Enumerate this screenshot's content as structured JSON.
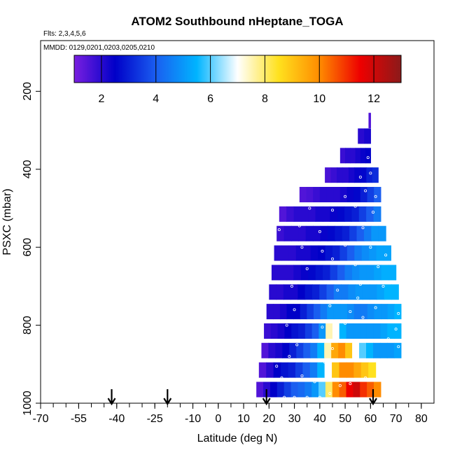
{
  "chart_data": {
    "type": "heatmap",
    "title": "ATOM2 Southbound nHeptane_TOGA",
    "flights_label": "Flts: 2,3,4,5,6",
    "dates_label": "MMDD: 0129,0201,0203,0205,0210",
    "xlabel": "Latitude (deg N)",
    "ylabel": "PSXC (mbar)",
    "x_ticks": [
      -70,
      -55,
      -40,
      -25,
      -10,
      0,
      10,
      20,
      30,
      40,
      50,
      60,
      70,
      80
    ],
    "x_tick_labels": [
      "-70",
      "-55",
      "-40",
      "-25",
      "-10",
      "0",
      "10",
      "20",
      "30",
      "40",
      "50",
      "60",
      "70",
      "80"
    ],
    "y_ticks": [
      200,
      400,
      600,
      800,
      1000
    ],
    "y_tick_labels": [
      "200",
      "400",
      "600",
      "800",
      "1000"
    ],
    "xlim": [
      -70,
      85
    ],
    "ylim": [
      1000,
      70
    ],
    "colorbar": {
      "range": [
        1,
        13
      ],
      "ticks": [
        2,
        4,
        6,
        8,
        10,
        12
      ],
      "tick_labels": [
        "2",
        "4",
        "6",
        "8",
        "10",
        "12"
      ],
      "colors": [
        "#7a1fe0",
        "#0000c8",
        "#1a5ef0",
        "#00b4ff",
        "#ffffff",
        "#ffe11e",
        "#ff8c00",
        "#ee0000",
        "#8b1a1a"
      ]
    },
    "arrows_latitude": [
      -42,
      -20,
      19,
      61
    ],
    "bands": [
      {
        "p": 965,
        "x0": 15,
        "x1": 64,
        "vals": [
          1.5,
          2,
          2.5,
          3,
          3.5,
          4,
          4.2,
          4.5,
          5,
          6,
          8,
          10,
          10.5,
          11.5,
          12,
          11,
          10.5,
          10
        ]
      },
      {
        "p": 915,
        "x0": 16,
        "x1": 62,
        "vals": [
          1.5,
          2,
          2.5,
          2.8,
          3,
          3.5,
          4,
          4.5,
          5.5,
          7,
          9,
          10,
          10,
          9.5,
          9,
          8.5
        ]
      },
      {
        "p": 865,
        "x0": 17,
        "x1": 72,
        "vals": [
          1.5,
          2,
          2.2,
          2.5,
          3,
          3.5,
          4,
          4.5,
          5.5,
          7.5,
          9.5,
          10,
          9,
          7,
          6,
          5.5,
          5,
          5,
          5,
          5.2
        ]
      },
      {
        "p": 815,
        "x0": 18,
        "x1": 72,
        "vals": [
          1.8,
          2,
          2.2,
          2.5,
          2.8,
          3,
          3.5,
          4,
          5,
          7.5,
          7,
          5.5,
          5,
          5,
          5,
          5,
          5,
          5.2,
          5.5,
          5.5
        ]
      },
      {
        "p": 765,
        "x0": 19,
        "x1": 72,
        "vals": [
          2,
          2,
          2.2,
          2.5,
          2.5,
          3,
          3.5,
          4,
          4.5,
          5,
          5,
          5,
          4.8,
          4.5,
          4.5,
          4.8,
          5,
          5,
          5.2,
          5.5
        ]
      },
      {
        "p": 715,
        "x0": 20,
        "x1": 71,
        "vals": [
          2,
          2,
          2.2,
          2.2,
          2.5,
          2.8,
          3,
          3.5,
          4,
          4.5,
          4.5,
          4.8,
          5,
          5,
          5,
          5.2,
          5.5,
          5.5
        ]
      },
      {
        "p": 665,
        "x0": 21,
        "x1": 70,
        "vals": [
          2,
          2,
          2,
          2.2,
          2.4,
          2.6,
          2.8,
          3,
          3.5,
          4,
          4.5,
          4.8,
          5,
          5,
          5.2,
          5.4,
          5.4
        ]
      },
      {
        "p": 615,
        "x0": 22,
        "x1": 68,
        "vals": [
          2,
          2,
          2,
          2.2,
          2.2,
          2.4,
          2.5,
          2.8,
          3,
          3.5,
          4,
          4.5,
          4.8,
          5,
          5.2,
          5.2
        ]
      },
      {
        "p": 565,
        "x0": 23,
        "x1": 66,
        "vals": [
          1.8,
          2,
          2,
          2,
          2.2,
          2.2,
          2.4,
          2.6,
          2.8,
          3,
          3.5,
          4,
          4.5,
          5,
          5
        ]
      },
      {
        "p": 515,
        "x0": 24,
        "x1": 64,
        "vals": [
          1.5,
          1.8,
          2,
          2,
          2,
          2.2,
          2.2,
          2.4,
          2.6,
          2.8,
          3,
          3.5,
          4,
          4.5
        ]
      },
      {
        "p": 465,
        "x0": 32,
        "x1": 64,
        "vals": [
          1.5,
          1.6,
          1.8,
          2,
          2,
          2,
          2.2,
          2.4,
          2.6,
          3,
          3.5,
          4
        ]
      },
      {
        "p": 415,
        "x0": 42,
        "x1": 63,
        "vals": [
          1.6,
          1.8,
          2,
          2,
          2.2,
          2.4,
          2.6,
          3,
          3.2
        ]
      },
      {
        "p": 365,
        "x0": 48,
        "x1": 60,
        "vals": [
          1.8,
          2,
          2,
          2.2,
          2.4,
          2.5
        ]
      },
      {
        "p": 315,
        "x0": 55,
        "x1": 60,
        "vals": [
          2,
          2,
          2.2,
          2.2
        ]
      },
      {
        "p": 275,
        "x0": 59.2,
        "x1": 60,
        "vals": [
          1.5,
          1.5
        ]
      }
    ],
    "samples": [
      {
        "lat": 26,
        "p": 985
      },
      {
        "lat": 30,
        "p": 985
      },
      {
        "lat": 35,
        "p": 985
      },
      {
        "lat": 40,
        "p": 985
      },
      {
        "lat": 44,
        "p": 975
      },
      {
        "lat": 48,
        "p": 955
      },
      {
        "lat": 25,
        "p": 935
      },
      {
        "lat": 33,
        "p": 930
      },
      {
        "lat": 38,
        "p": 945
      },
      {
        "lat": 46,
        "p": 940
      },
      {
        "lat": 52,
        "p": 950
      },
      {
        "lat": 58,
        "p": 935
      },
      {
        "lat": 23,
        "p": 905
      },
      {
        "lat": 28,
        "p": 880
      },
      {
        "lat": 36,
        "p": 890
      },
      {
        "lat": 42,
        "p": 895
      },
      {
        "lat": 60,
        "p": 890
      },
      {
        "lat": 64,
        "p": 900
      },
      {
        "lat": 31,
        "p": 850
      },
      {
        "lat": 39,
        "p": 840
      },
      {
        "lat": 45,
        "p": 860
      },
      {
        "lat": 54,
        "p": 845
      },
      {
        "lat": 67,
        "p": 835
      },
      {
        "lat": 71,
        "p": 855
      },
      {
        "lat": 27,
        "p": 800
      },
      {
        "lat": 35,
        "p": 790
      },
      {
        "lat": 41,
        "p": 805
      },
      {
        "lat": 50,
        "p": 795
      },
      {
        "lat": 57,
        "p": 780
      },
      {
        "lat": 70,
        "p": 810
      },
      {
        "lat": 30,
        "p": 760
      },
      {
        "lat": 44,
        "p": 750
      },
      {
        "lat": 52,
        "p": 765
      },
      {
        "lat": 62,
        "p": 755
      },
      {
        "lat": 71,
        "p": 770
      },
      {
        "lat": 55,
        "p": 730
      },
      {
        "lat": 29,
        "p": 700
      },
      {
        "lat": 37,
        "p": 690
      },
      {
        "lat": 47,
        "p": 710
      },
      {
        "lat": 56,
        "p": 695
      },
      {
        "lat": 65,
        "p": 700
      },
      {
        "lat": 27,
        "p": 640
      },
      {
        "lat": 35,
        "p": 655
      },
      {
        "lat": 45,
        "p": 630
      },
      {
        "lat": 54,
        "p": 645
      },
      {
        "lat": 63,
        "p": 650
      },
      {
        "lat": 26,
        "p": 590
      },
      {
        "lat": 33,
        "p": 600
      },
      {
        "lat": 41,
        "p": 610
      },
      {
        "lat": 50,
        "p": 595
      },
      {
        "lat": 60,
        "p": 600
      },
      {
        "lat": 66,
        "p": 620
      },
      {
        "lat": 24,
        "p": 555
      },
      {
        "lat": 32,
        "p": 545
      },
      {
        "lat": 40,
        "p": 560
      },
      {
        "lat": 57,
        "p": 550
      },
      {
        "lat": 63,
        "p": 540
      },
      {
        "lat": 36,
        "p": 500
      },
      {
        "lat": 45,
        "p": 505
      },
      {
        "lat": 54,
        "p": 495
      },
      {
        "lat": 61,
        "p": 510
      },
      {
        "lat": 50,
        "p": 470
      },
      {
        "lat": 58,
        "p": 455
      },
      {
        "lat": 62,
        "p": 470
      },
      {
        "lat": 56,
        "p": 420
      },
      {
        "lat": 60,
        "p": 410
      },
      {
        "lat": 59,
        "p": 370
      }
    ]
  }
}
